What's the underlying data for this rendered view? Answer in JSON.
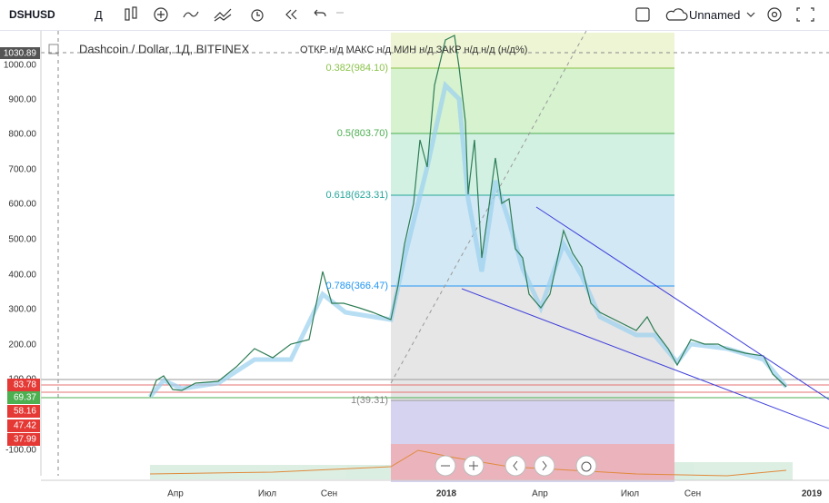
{
  "toolbar": {
    "symbol": "DSHUSD",
    "interval": "Д",
    "layout_name": "Unnamed"
  },
  "legend": {
    "title": "Dashcoin / Dollar, 1Д, BITFINEX",
    "ohlc": "ОТКР н/д  МАКС н/д  МИН н/д  ЗАКР н/д  н/д (н/д%)"
  },
  "price_axis": {
    "last_high": "1030.89",
    "labels": [
      "1000.00",
      "900.00",
      "800.00",
      "700.00",
      "600.00",
      "500.00",
      "400.00",
      "300.00",
      "200.00",
      "100.00",
      "-100.00"
    ],
    "tags": [
      "83.78",
      "69.37",
      "58.16",
      "47.42",
      "37.99"
    ]
  },
  "fib_levels": [
    "0.382(984.10)",
    "0.5(803.70)",
    "0.618(623.31)",
    "0.786(366.47)",
    "1(39.31)"
  ],
  "time_axis": [
    "Апр",
    "Июл",
    "Сен",
    "2018",
    "Апр",
    "Июл",
    "Сен",
    "2019"
  ]
}
